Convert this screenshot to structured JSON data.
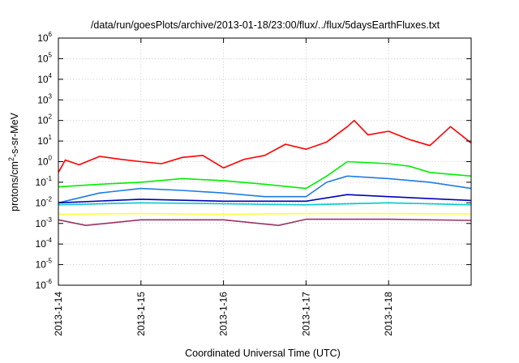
{
  "chart_data": {
    "type": "line",
    "title": "/data/run/goesPlots/archive/2013-01-18/23:00/flux/../flux/5daysEarthFluxes.txt",
    "xlabel": "Coordinated Universal Time (UTC)",
    "ylabel": "protons/cm2-s-sr-MeV",
    "y_scale": "log",
    "ylim": [
      1e-06,
      1000000.0
    ],
    "y_ticks": [
      {
        "base": "10",
        "exp": "-6",
        "value": 1e-06
      },
      {
        "base": "10",
        "exp": "-5",
        "value": 1e-05
      },
      {
        "base": "10",
        "exp": "-4",
        "value": 0.0001
      },
      {
        "base": "10",
        "exp": "-3",
        "value": 0.001
      },
      {
        "base": "10",
        "exp": "-2",
        "value": 0.01
      },
      {
        "base": "10",
        "exp": "-1",
        "value": 0.1
      },
      {
        "base": "10",
        "exp": "0",
        "value": 1
      },
      {
        "base": "10",
        "exp": "1",
        "value": 10
      },
      {
        "base": "10",
        "exp": "2",
        "value": 100
      },
      {
        "base": "10",
        "exp": "3",
        "value": 1000
      },
      {
        "base": "10",
        "exp": "4",
        "value": 10000
      },
      {
        "base": "10",
        "exp": "5",
        "value": 100000
      },
      {
        "base": "10",
        "exp": "6",
        "value": 1000000
      }
    ],
    "xlim": [
      "2013-01-14",
      "2013-01-19"
    ],
    "x_ticks": [
      "2013-1-14",
      "2013-1-15",
      "2013-1-16",
      "2013-1-17",
      "2013-1-18"
    ],
    "grid": true,
    "legend": "none",
    "series": [
      {
        "color": "#ff0000",
        "x": [
          "2013-01-14",
          "2013-01-14T02:00",
          "2013-01-14T06:00",
          "2013-01-14T12:00",
          "2013-01-14T18:00",
          "2013-01-15",
          "2013-01-15T06:00",
          "2013-01-15T12:00",
          "2013-01-15T18:00",
          "2013-01-16",
          "2013-01-16T06:00",
          "2013-01-16T12:00",
          "2013-01-16T18:00",
          "2013-01-17",
          "2013-01-17T06:00",
          "2013-01-17T12:00",
          "2013-01-17T14:00",
          "2013-01-17T18:00",
          "2013-01-18",
          "2013-01-18T06:00",
          "2013-01-18T12:00",
          "2013-01-18T18:00",
          "2013-01-19"
        ],
        "values": [
          0.3,
          1.2,
          0.7,
          1.8,
          1.3,
          1.0,
          0.8,
          1.6,
          2.0,
          0.5,
          1.3,
          2.0,
          7.0,
          4.0,
          9.0,
          50,
          100,
          20,
          30,
          12,
          6,
          50,
          8
        ]
      },
      {
        "color": "#00ee00",
        "x": [
          "2013-01-14",
          "2013-01-14T12:00",
          "2013-01-15",
          "2013-01-15T12:00",
          "2013-01-16",
          "2013-01-16T12:00",
          "2013-01-17",
          "2013-01-17T06:00",
          "2013-01-17T12:00",
          "2013-01-18",
          "2013-01-18T06:00",
          "2013-01-18T12:00",
          "2013-01-19"
        ],
        "values": [
          0.06,
          0.08,
          0.1,
          0.15,
          0.12,
          0.08,
          0.05,
          0.2,
          1.0,
          0.8,
          0.6,
          0.3,
          0.2
        ]
      },
      {
        "color": "#1e7be6",
        "x": [
          "2013-01-14",
          "2013-01-14T12:00",
          "2013-01-15",
          "2013-01-15T12:00",
          "2013-01-16",
          "2013-01-16T12:00",
          "2013-01-17",
          "2013-01-17T06:00",
          "2013-01-17T12:00",
          "2013-01-18",
          "2013-01-18T12:00",
          "2013-01-19"
        ],
        "values": [
          0.01,
          0.03,
          0.05,
          0.04,
          0.03,
          0.02,
          0.02,
          0.1,
          0.2,
          0.15,
          0.1,
          0.05
        ]
      },
      {
        "color": "#0000bb",
        "x": [
          "2013-01-14",
          "2013-01-15",
          "2013-01-16",
          "2013-01-17",
          "2013-01-17T12:00",
          "2013-01-18",
          "2013-01-19"
        ],
        "values": [
          0.01,
          0.015,
          0.012,
          0.012,
          0.025,
          0.02,
          0.013
        ]
      },
      {
        "color": "#00cccc",
        "x": [
          "2013-01-14",
          "2013-01-15",
          "2013-01-16",
          "2013-01-17",
          "2013-01-18",
          "2013-01-19"
        ],
        "values": [
          0.008,
          0.01,
          0.009,
          0.008,
          0.01,
          0.008
        ]
      },
      {
        "color": "#ffff33",
        "x": [
          "2013-01-14",
          "2013-01-15",
          "2013-01-16",
          "2013-01-17",
          "2013-01-18",
          "2013-01-19"
        ],
        "values": [
          0.0028,
          0.003,
          0.0028,
          0.003,
          0.003,
          0.0029
        ]
      },
      {
        "color": "#993366",
        "x": [
          "2013-01-14",
          "2013-01-14T08:00",
          "2013-01-15",
          "2013-01-16",
          "2013-01-16T16:00",
          "2013-01-17",
          "2013-01-18",
          "2013-01-19"
        ],
        "values": [
          0.0015,
          0.0008,
          0.0015,
          0.0015,
          0.0008,
          0.0016,
          0.0016,
          0.0014
        ]
      }
    ]
  }
}
